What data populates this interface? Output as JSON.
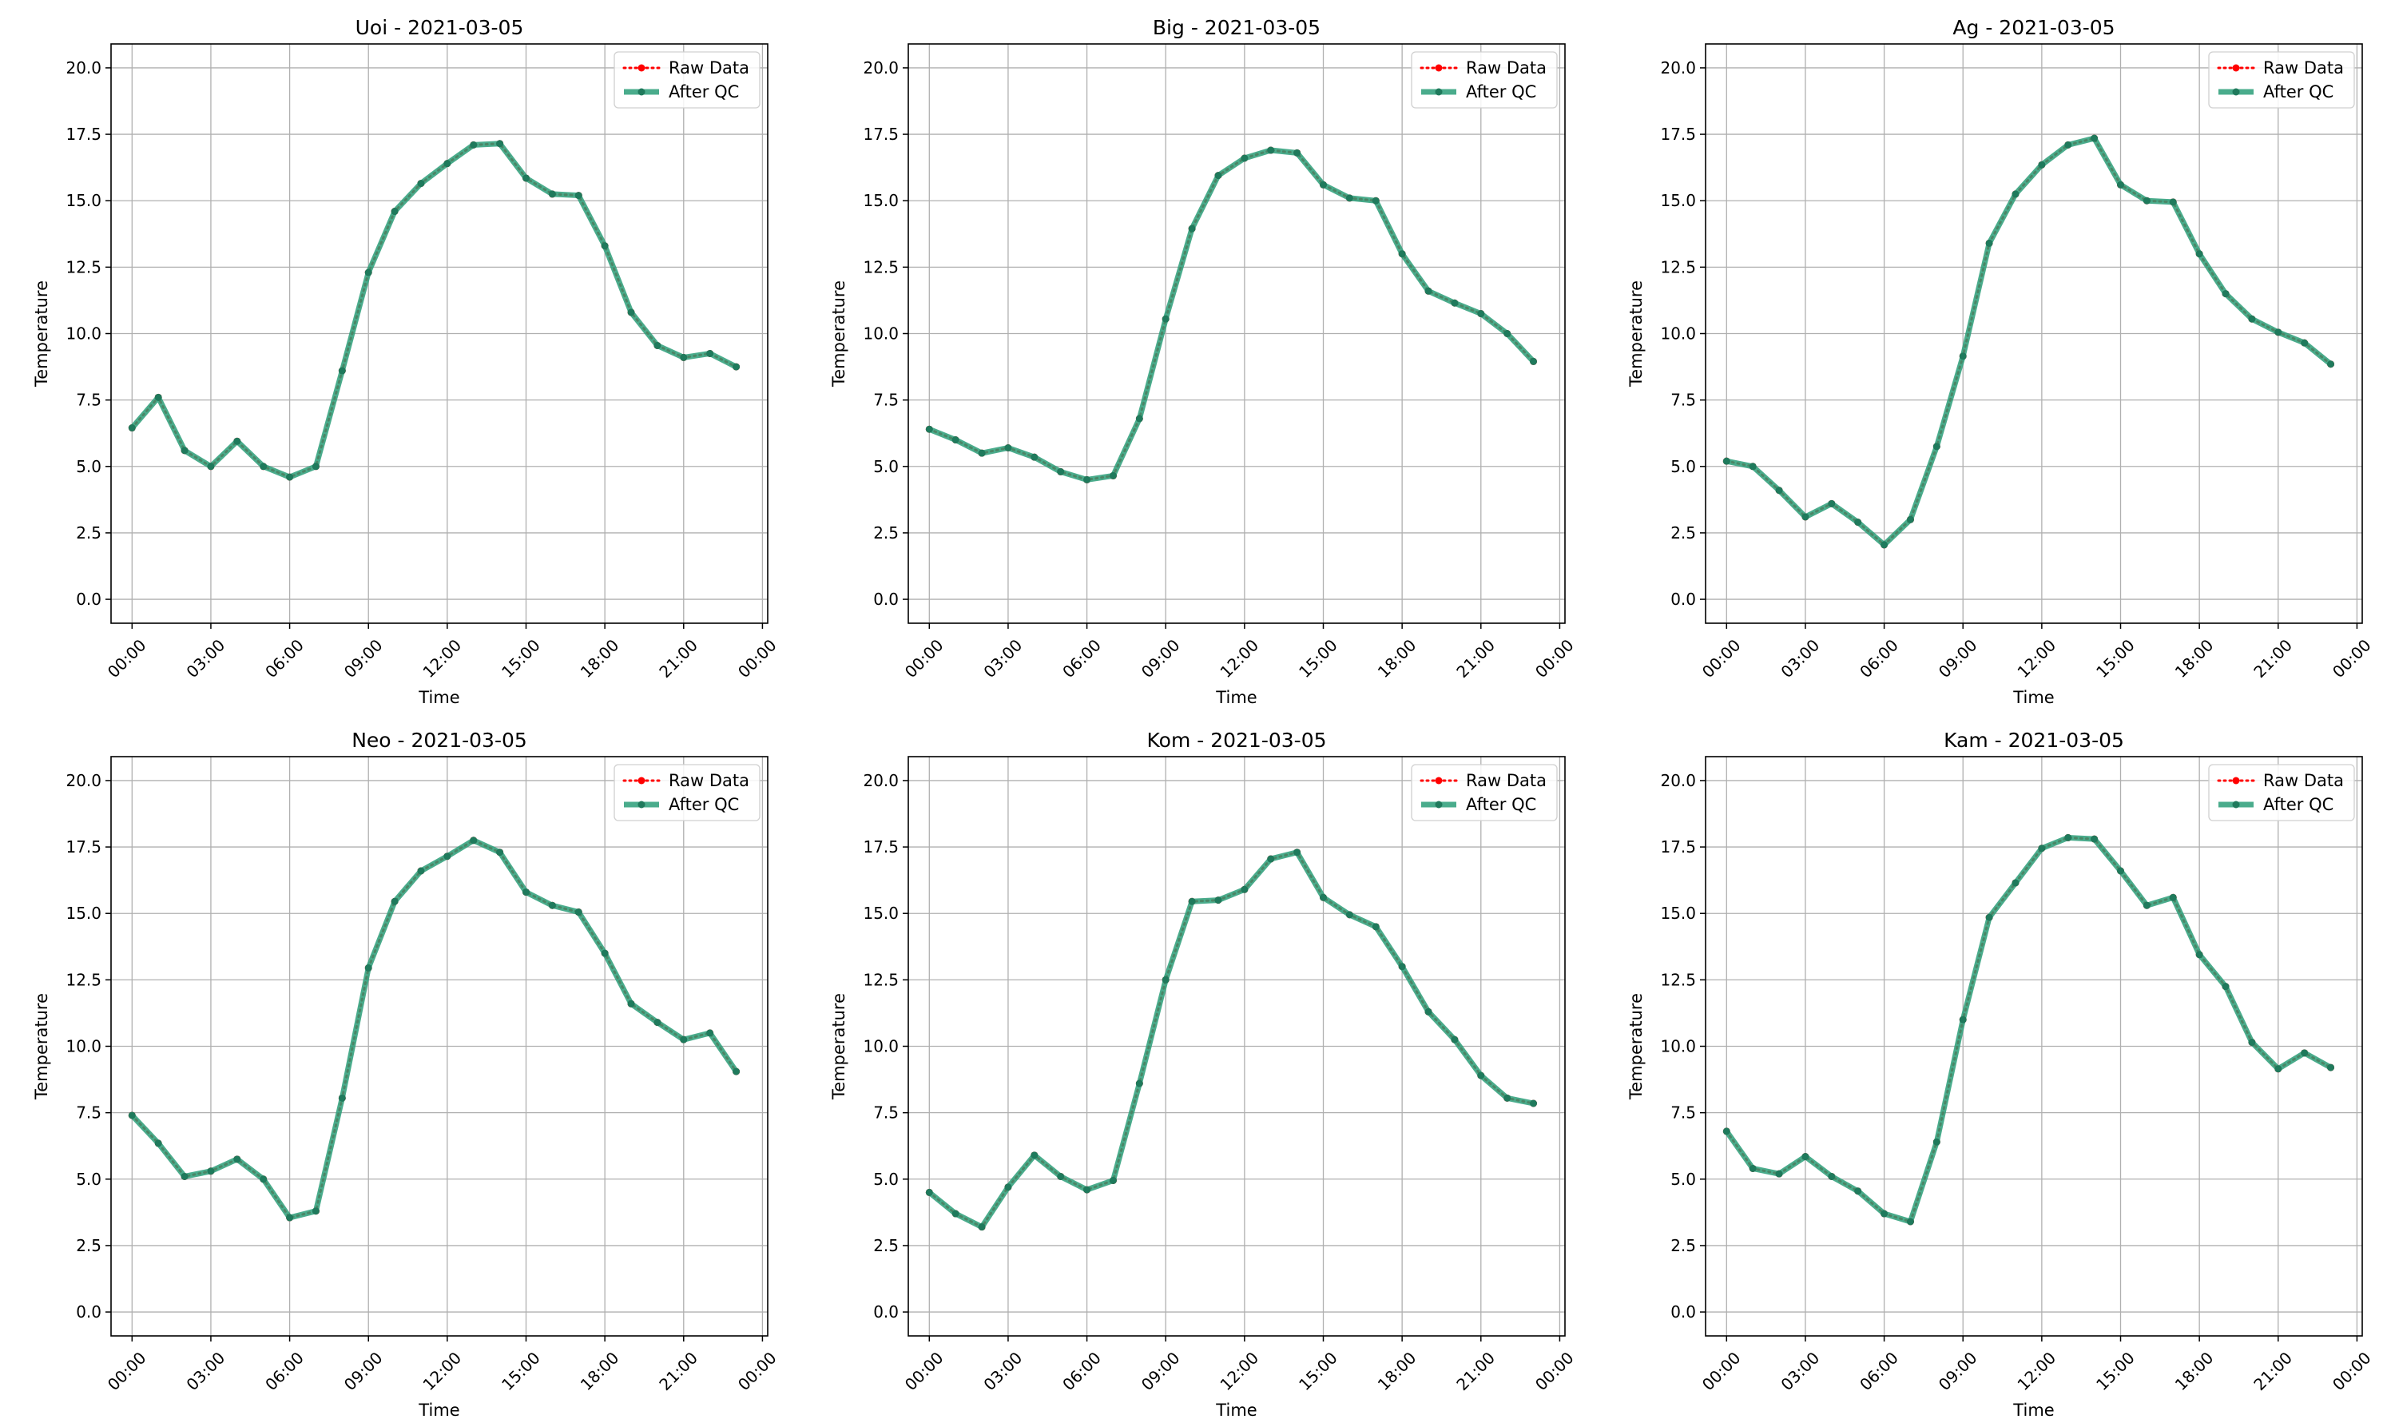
{
  "colors": {
    "raw": "#ff0000",
    "qc": "#2a9d78",
    "grid": "#b0b0b0"
  },
  "chart_data": [
    {
      "type": "line",
      "title": "Uoi - 2021-03-05",
      "xlabel": "Time",
      "ylabel": "Temperature",
      "ylim": [
        -0.9,
        20.9
      ],
      "xlim": [
        -0.8,
        24.2
      ],
      "yticks": [
        "0.0",
        "2.5",
        "5.0",
        "7.5",
        "10.0",
        "12.5",
        "15.0",
        "17.5",
        "20.0"
      ],
      "xticks": [
        "00:00",
        "03:00",
        "06:00",
        "09:00",
        "12:00",
        "15:00",
        "18:00",
        "21:00",
        "00:00"
      ],
      "grid": true,
      "legend": "upper right",
      "x": [
        0,
        1,
        2,
        3,
        4,
        5,
        6,
        7,
        8,
        9,
        10,
        11,
        12,
        13,
        14,
        15,
        16,
        17,
        18,
        19,
        20,
        21,
        22,
        23
      ],
      "series": [
        {
          "name": "Raw Data",
          "values": [
            6.45,
            7.6,
            5.6,
            5.0,
            5.95,
            5.0,
            4.6,
            5.0,
            8.6,
            12.3,
            14.6,
            15.65,
            16.4,
            17.1,
            17.15,
            15.85,
            15.25,
            15.2,
            13.3,
            10.8,
            9.55,
            9.1,
            9.25,
            8.75
          ]
        },
        {
          "name": "After QC",
          "values": [
            6.45,
            7.6,
            5.6,
            5.0,
            5.95,
            5.0,
            4.6,
            5.0,
            8.6,
            12.3,
            14.6,
            15.65,
            16.4,
            17.1,
            17.15,
            15.85,
            15.25,
            15.2,
            13.3,
            10.8,
            9.55,
            9.1,
            9.25,
            8.75
          ]
        }
      ]
    },
    {
      "type": "line",
      "title": "Big - 2021-03-05",
      "xlabel": "Time",
      "ylabel": "Temperature",
      "ylim": [
        -0.9,
        20.9
      ],
      "xlim": [
        -0.8,
        24.2
      ],
      "yticks": [
        "0.0",
        "2.5",
        "5.0",
        "7.5",
        "10.0",
        "12.5",
        "15.0",
        "17.5",
        "20.0"
      ],
      "xticks": [
        "00:00",
        "03:00",
        "06:00",
        "09:00",
        "12:00",
        "15:00",
        "18:00",
        "21:00",
        "00:00"
      ],
      "grid": true,
      "legend": "upper right",
      "x": [
        0,
        1,
        2,
        3,
        4,
        5,
        6,
        7,
        8,
        9,
        10,
        11,
        12,
        13,
        14,
        15,
        16,
        17,
        18,
        19,
        20,
        21,
        22,
        23
      ],
      "series": [
        {
          "name": "Raw Data",
          "values": [
            6.4,
            6.0,
            5.5,
            5.7,
            5.35,
            4.8,
            4.5,
            4.65,
            6.8,
            10.55,
            13.95,
            15.95,
            16.6,
            16.9,
            16.8,
            15.6,
            15.1,
            15.0,
            13.0,
            11.6,
            11.15,
            10.75,
            10.0,
            8.95
          ]
        },
        {
          "name": "After QC",
          "values": [
            6.4,
            6.0,
            5.5,
            5.7,
            5.35,
            4.8,
            4.5,
            4.65,
            6.8,
            10.55,
            13.95,
            15.95,
            16.6,
            16.9,
            16.8,
            15.6,
            15.1,
            15.0,
            13.0,
            11.6,
            11.15,
            10.75,
            10.0,
            8.95
          ]
        }
      ]
    },
    {
      "type": "line",
      "title": "Ag - 2021-03-05",
      "xlabel": "Time",
      "ylabel": "Temperature",
      "ylim": [
        -0.9,
        20.9
      ],
      "xlim": [
        -0.8,
        24.2
      ],
      "yticks": [
        "0.0",
        "2.5",
        "5.0",
        "7.5",
        "10.0",
        "12.5",
        "15.0",
        "17.5",
        "20.0"
      ],
      "xticks": [
        "00:00",
        "03:00",
        "06:00",
        "09:00",
        "12:00",
        "15:00",
        "18:00",
        "21:00",
        "00:00"
      ],
      "grid": true,
      "legend": "upper right",
      "x": [
        0,
        1,
        2,
        3,
        4,
        5,
        6,
        7,
        8,
        9,
        10,
        11,
        12,
        13,
        14,
        15,
        16,
        17,
        18,
        19,
        20,
        21,
        22,
        23
      ],
      "series": [
        {
          "name": "Raw Data",
          "values": [
            5.2,
            5.0,
            4.1,
            3.1,
            3.6,
            2.9,
            2.05,
            3.0,
            5.75,
            9.15,
            13.4,
            15.25,
            16.35,
            17.1,
            17.35,
            15.6,
            15.0,
            14.95,
            13.0,
            11.5,
            10.55,
            10.05,
            9.65,
            8.85
          ]
        },
        {
          "name": "After QC",
          "values": [
            5.2,
            5.0,
            4.1,
            3.1,
            3.6,
            2.9,
            2.05,
            3.0,
            5.75,
            9.15,
            13.4,
            15.25,
            16.35,
            17.1,
            17.35,
            15.6,
            15.0,
            14.95,
            13.0,
            11.5,
            10.55,
            10.05,
            9.65,
            8.85
          ]
        }
      ]
    },
    {
      "type": "line",
      "title": "Neo - 2021-03-05",
      "xlabel": "Time",
      "ylabel": "Temperature",
      "ylim": [
        -0.9,
        20.9
      ],
      "xlim": [
        -0.8,
        24.2
      ],
      "yticks": [
        "0.0",
        "2.5",
        "5.0",
        "7.5",
        "10.0",
        "12.5",
        "15.0",
        "17.5",
        "20.0"
      ],
      "xticks": [
        "00:00",
        "03:00",
        "06:00",
        "09:00",
        "12:00",
        "15:00",
        "18:00",
        "21:00",
        "00:00"
      ],
      "grid": true,
      "legend": "upper right",
      "x": [
        0,
        1,
        2,
        3,
        4,
        5,
        6,
        7,
        8,
        9,
        10,
        11,
        12,
        13,
        14,
        15,
        16,
        17,
        18,
        19,
        20,
        21,
        22,
        23
      ],
      "series": [
        {
          "name": "Raw Data",
          "values": [
            7.4,
            6.35,
            5.1,
            5.3,
            5.75,
            5.0,
            3.55,
            3.8,
            8.05,
            12.95,
            15.45,
            16.6,
            17.15,
            17.75,
            17.3,
            15.8,
            15.3,
            15.05,
            13.5,
            11.6,
            10.9,
            10.25,
            10.5,
            9.05
          ]
        },
        {
          "name": "After QC",
          "values": [
            7.4,
            6.35,
            5.1,
            5.3,
            5.75,
            5.0,
            3.55,
            3.8,
            8.05,
            12.95,
            15.45,
            16.6,
            17.15,
            17.75,
            17.3,
            15.8,
            15.3,
            15.05,
            13.5,
            11.6,
            10.9,
            10.25,
            10.5,
            9.05
          ]
        }
      ]
    },
    {
      "type": "line",
      "title": "Kom - 2021-03-05",
      "xlabel": "Time",
      "ylabel": "Temperature",
      "ylim": [
        -0.9,
        20.9
      ],
      "xlim": [
        -0.8,
        24.2
      ],
      "yticks": [
        "0.0",
        "2.5",
        "5.0",
        "7.5",
        "10.0",
        "12.5",
        "15.0",
        "17.5",
        "20.0"
      ],
      "xticks": [
        "00:00",
        "03:00",
        "06:00",
        "09:00",
        "12:00",
        "15:00",
        "18:00",
        "21:00",
        "00:00"
      ],
      "grid": true,
      "legend": "upper right",
      "x": [
        0,
        1,
        2,
        3,
        4,
        5,
        6,
        7,
        8,
        9,
        10,
        11,
        12,
        13,
        14,
        15,
        16,
        17,
        18,
        19,
        20,
        21,
        22,
        23
      ],
      "series": [
        {
          "name": "Raw Data",
          "values": [
            4.5,
            3.7,
            3.2,
            4.7,
            5.9,
            5.1,
            4.6,
            4.95,
            8.6,
            12.5,
            15.45,
            15.5,
            15.9,
            17.05,
            17.3,
            15.6,
            14.95,
            14.5,
            13.0,
            11.3,
            10.25,
            8.9,
            8.05,
            7.85
          ]
        },
        {
          "name": "After QC",
          "values": [
            4.5,
            3.7,
            3.2,
            4.7,
            5.9,
            5.1,
            4.6,
            4.95,
            8.6,
            12.5,
            15.45,
            15.5,
            15.9,
            17.05,
            17.3,
            15.6,
            14.95,
            14.5,
            13.0,
            11.3,
            10.25,
            8.9,
            8.05,
            7.85
          ]
        }
      ]
    },
    {
      "type": "line",
      "title": "Kam - 2021-03-05",
      "xlabel": "Time",
      "ylabel": "Temperature",
      "ylim": [
        -0.9,
        20.9
      ],
      "xlim": [
        -0.8,
        24.2
      ],
      "yticks": [
        "0.0",
        "2.5",
        "5.0",
        "7.5",
        "10.0",
        "12.5",
        "15.0",
        "17.5",
        "20.0"
      ],
      "xticks": [
        "00:00",
        "03:00",
        "06:00",
        "09:00",
        "12:00",
        "15:00",
        "18:00",
        "21:00",
        "00:00"
      ],
      "grid": true,
      "legend": "upper right",
      "x": [
        0,
        1,
        2,
        3,
        4,
        5,
        6,
        7,
        8,
        9,
        10,
        11,
        12,
        13,
        14,
        15,
        16,
        17,
        18,
        19,
        20,
        21,
        22,
        23
      ],
      "series": [
        {
          "name": "Raw Data",
          "values": [
            6.8,
            5.4,
            5.2,
            5.85,
            5.1,
            4.55,
            3.7,
            3.4,
            6.4,
            11.0,
            14.85,
            16.15,
            17.45,
            17.85,
            17.8,
            16.6,
            15.3,
            15.6,
            13.45,
            12.25,
            10.15,
            9.15,
            9.75,
            9.2
          ]
        },
        {
          "name": "After QC",
          "values": [
            6.8,
            5.4,
            5.2,
            5.85,
            5.1,
            4.55,
            3.7,
            3.4,
            6.4,
            11.0,
            14.85,
            16.15,
            17.45,
            17.85,
            17.8,
            16.6,
            15.3,
            15.6,
            13.45,
            12.25,
            10.15,
            9.15,
            9.75,
            9.2
          ]
        }
      ]
    }
  ]
}
